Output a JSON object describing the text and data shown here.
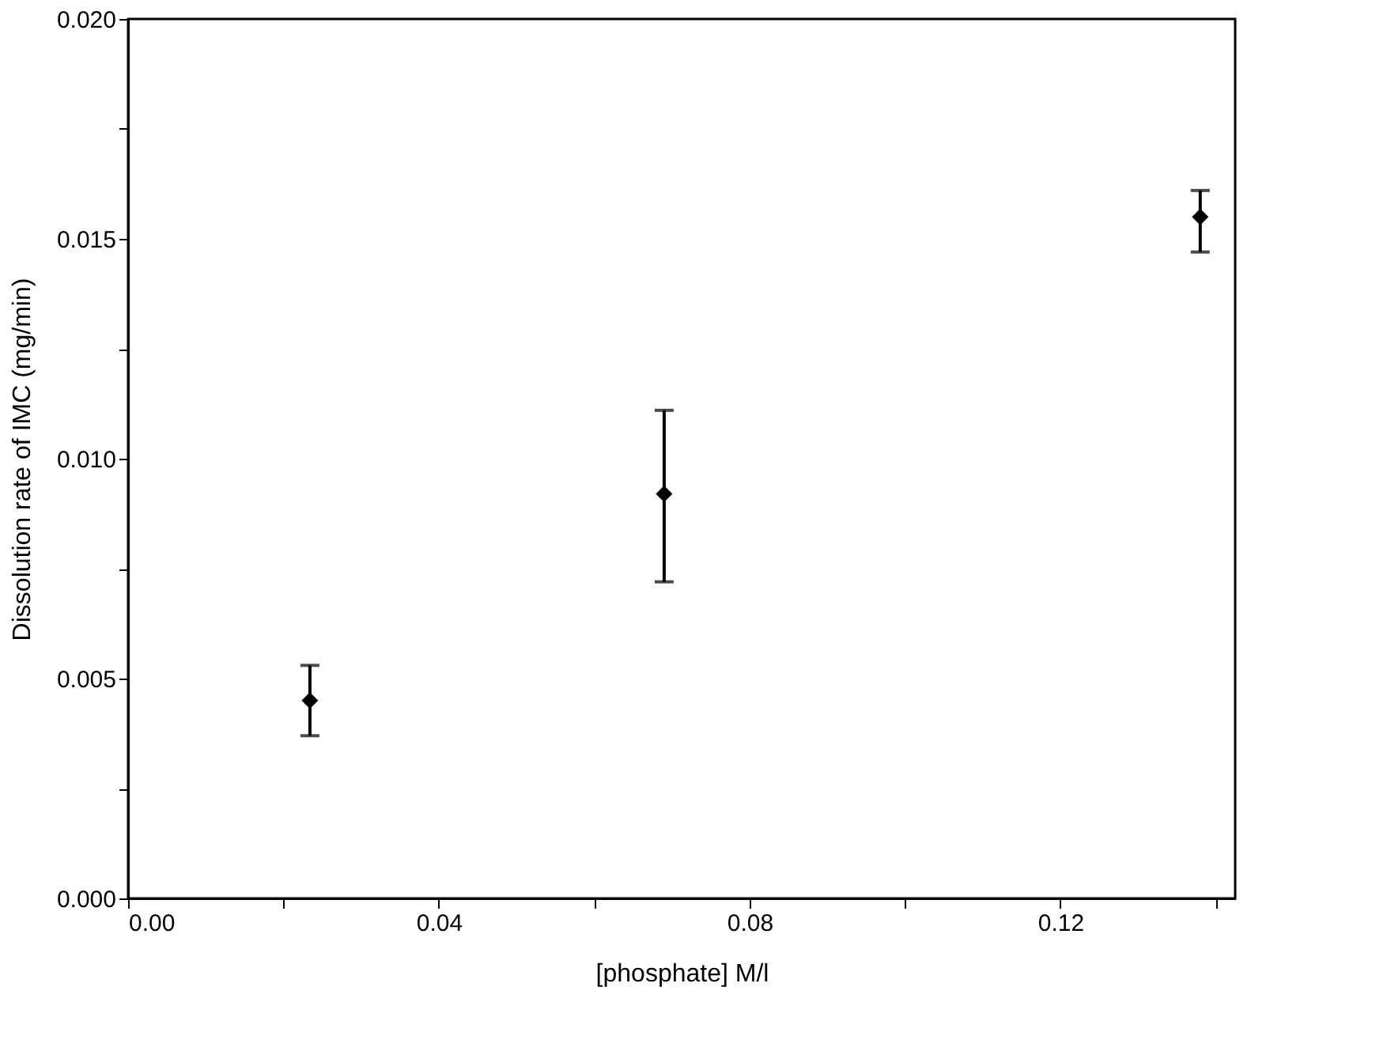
{
  "chart_data": {
    "type": "scatter",
    "xlabel": "[phosphate] M/l",
    "ylabel": "Dissolution rate of IMC (mg/min)",
    "x": [
      0.0234,
      0.069,
      0.138
    ],
    "series": [
      {
        "color": "#000000",
        "values": [
          0.0045,
          0.0092,
          0.0155
        ],
        "errors": [
          [
            0.0037,
            0.0053
          ],
          [
            0.0072,
            0.0111
          ],
          [
            0.0147,
            0.0161
          ]
        ]
      }
    ],
    "marker": "diamond",
    "grid": false,
    "xlim": [
      0,
      0.1425
    ],
    "xticks": [
      {
        "value": 0,
        "label": "0.00"
      },
      {
        "value": 0.02,
        "label": null
      },
      {
        "value": 0.04,
        "label": "0.04"
      },
      {
        "value": 0.06,
        "label": null
      },
      {
        "value": 0.08,
        "label": "0.08"
      },
      {
        "value": 0.1,
        "label": null
      },
      {
        "value": 0.12,
        "label": "0.12"
      },
      {
        "value": 0.14,
        "label": null
      }
    ],
    "ylim": [
      0,
      0.02
    ],
    "yticks": [
      {
        "value": 0,
        "label": "0.000"
      },
      {
        "value": 0.0025,
        "label": null
      },
      {
        "value": 0.005,
        "label": "0.005"
      },
      {
        "value": 0.0075,
        "label": null
      },
      {
        "value": 0.01,
        "label": "0.010"
      },
      {
        "value": 0.0125,
        "label": null
      },
      {
        "value": 0.015,
        "label": "0.015"
      },
      {
        "value": 0.0175,
        "label": null
      },
      {
        "value": 0.02,
        "label": "0.020"
      }
    ]
  }
}
